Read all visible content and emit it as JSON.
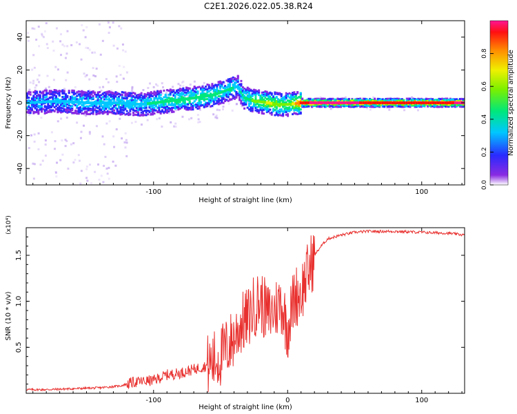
{
  "title": "C2E1.2026.022.05.38.R24",
  "chart_data": [
    {
      "type": "heatmap",
      "title": "",
      "xlabel": "Height of straight line (km)",
      "ylabel": "Frequency (Hz)",
      "xlim": [
        -195,
        132
      ],
      "ylim": [
        -50,
        50
      ],
      "xticks": [
        -100,
        0,
        100
      ],
      "xticklabels": [
        "-100",
        "",
        "100"
      ],
      "yticks": [
        -40,
        -20,
        0,
        20,
        40
      ],
      "yticklabels": [
        "-40",
        "-20",
        "0",
        "20",
        "40"
      ],
      "colorbar": {
        "label": "Normalized spectral amplitude",
        "range": [
          0,
          1
        ],
        "ticks": [
          0.0,
          0.2,
          0.4,
          0.6,
          0.8
        ],
        "ticklabels": [
          "0.0",
          "0.2",
          "0.4",
          "0.6",
          "0.8"
        ]
      },
      "ridge": {
        "x": [
          -195,
          -170,
          -150,
          -130,
          -110,
          -90,
          -70,
          -55,
          -45,
          -38,
          -33,
          -25,
          -15,
          -8,
          0,
          10,
          20,
          40,
          60,
          80,
          100,
          120,
          132
        ],
        "y": [
          0,
          1,
          0,
          0,
          -1,
          1,
          3,
          5,
          8,
          10,
          3,
          1,
          0,
          -1,
          -1,
          0,
          0,
          0,
          0,
          0,
          0,
          0,
          0
        ],
        "amplitude": [
          0.2,
          0.25,
          0.3,
          0.3,
          0.3,
          0.4,
          0.45,
          0.4,
          0.35,
          0.3,
          0.35,
          0.5,
          0.6,
          0.55,
          0.5,
          0.9,
          0.95,
          0.95,
          0.92,
          0.9,
          0.9,
          0.92,
          0.95
        ]
      }
    },
    {
      "type": "line",
      "title": "",
      "xlabel": "Height of straight line (km)",
      "ylabel": "SNR (10 * v/v)",
      "multiplier": "(x10⁴)",
      "xlim": [
        -195,
        132
      ],
      "ylim": [
        0,
        1.8
      ],
      "xticks": [
        -100,
        0,
        100
      ],
      "xticklabels": [
        "-100",
        "0",
        "100"
      ],
      "yticks": [
        0.5,
        1.0,
        1.5
      ],
      "yticklabels": [
        "0.5",
        "1.0",
        "1.5"
      ],
      "color": "#e8302e",
      "series": [
        {
          "name": "SNR",
          "x": [
            -195,
            -180,
            -160,
            -140,
            -125,
            -115,
            -100,
            -90,
            -80,
            -70,
            -60,
            -50,
            -45,
            -40,
            -35,
            -30,
            -25,
            -20,
            -15,
            -10,
            -5,
            0,
            5,
            10,
            15,
            20,
            25,
            30,
            40,
            50,
            60,
            80,
            100,
            120,
            132
          ],
          "y": [
            0.04,
            0.04,
            0.05,
            0.06,
            0.08,
            0.12,
            0.14,
            0.2,
            0.22,
            0.26,
            0.3,
            0.4,
            0.5,
            0.6,
            0.75,
            0.8,
            0.95,
            1.0,
            0.85,
            0.9,
            1.0,
            0.7,
            1.05,
            1.1,
            1.3,
            1.5,
            1.6,
            1.68,
            1.72,
            1.75,
            1.76,
            1.76,
            1.75,
            1.74,
            1.72
          ]
        }
      ]
    }
  ]
}
